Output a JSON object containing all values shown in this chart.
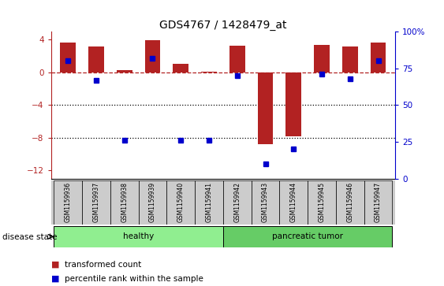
{
  "title": "GDS4767 / 1428479_at",
  "samples": [
    "GSM1159936",
    "GSM1159937",
    "GSM1159938",
    "GSM1159939",
    "GSM1159940",
    "GSM1159941",
    "GSM1159942",
    "GSM1159943",
    "GSM1159944",
    "GSM1159945",
    "GSM1159946",
    "GSM1159947"
  ],
  "bar_values": [
    3.6,
    3.2,
    0.3,
    3.95,
    1.0,
    0.05,
    3.3,
    -8.8,
    -7.8,
    3.4,
    3.2,
    3.6
  ],
  "dot_values_pct": [
    80,
    67,
    26,
    82,
    26,
    26,
    70,
    10,
    20,
    71,
    68,
    80
  ],
  "groups": [
    {
      "label": "healthy",
      "start": 0,
      "end": 6,
      "color": "#90EE90"
    },
    {
      "label": "pancreatic tumor",
      "start": 6,
      "end": 12,
      "color": "#66CC66"
    }
  ],
  "bar_color": "#B22222",
  "dot_color": "#0000CC",
  "ylim_left": [
    -13,
    5
  ],
  "ylim_right": [
    0,
    100
  ],
  "yticks_left": [
    4,
    0,
    -4,
    -8,
    -12
  ],
  "yticks_right": [
    100,
    75,
    50,
    25,
    0
  ],
  "dotted_lines": [
    -4,
    -8
  ],
  "legend_items": [
    {
      "label": "transformed count",
      "color": "#B22222"
    },
    {
      "label": "percentile rank within the sample",
      "color": "#0000CC"
    }
  ],
  "disease_state_label": "disease state",
  "background_color": "#ffffff",
  "tick_label_area_color": "#cccccc"
}
